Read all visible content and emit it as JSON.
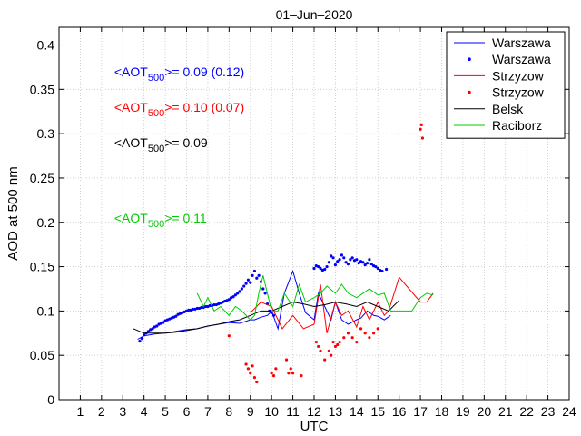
{
  "chart_data": {
    "type": "line",
    "title": "01–Jun–2020",
    "xlabel": "UTC",
    "ylabel": "AOD at 500 nm",
    "xlim": [
      0,
      24
    ],
    "ylim": [
      0,
      0.42
    ],
    "x_ticks": [
      1,
      2,
      3,
      4,
      5,
      6,
      7,
      8,
      9,
      10,
      11,
      12,
      13,
      14,
      15,
      16,
      17,
      18,
      19,
      20,
      21,
      22,
      23,
      24
    ],
    "y_ticks": [
      0,
      0.05,
      0.1,
      0.15,
      0.2,
      0.25,
      0.3,
      0.35,
      0.4
    ],
    "y_tick_labels": [
      "0",
      "0.05",
      "0.1",
      "0.15",
      "0.2",
      "0.25",
      "0.3",
      "0.35",
      "0.4"
    ],
    "grid": true,
    "legend_position": "top-right",
    "legend": [
      {
        "name": "Warszawa",
        "style": "line",
        "color": "#0000ff"
      },
      {
        "name": "Warszawa",
        "style": "dots",
        "color": "#0000ff"
      },
      {
        "name": "Strzyzow",
        "style": "line",
        "color": "#ff0000"
      },
      {
        "name": "Strzyzow",
        "style": "dots",
        "color": "#ff0000"
      },
      {
        "name": "Belsk",
        "style": "line",
        "color": "#000000"
      },
      {
        "name": "Raciborz",
        "style": "line",
        "color": "#00cc00"
      }
    ],
    "annotations": [
      {
        "prefix": "<AOT",
        "sub": "500",
        "suffix": ">= 0.09 (0.12)",
        "color": "#0000ff",
        "x": 2.6,
        "y": 0.37
      },
      {
        "prefix": "<AOT",
        "sub": "500",
        "suffix": ">= 0.10 (0.07)",
        "color": "#ff0000",
        "x": 2.6,
        "y": 0.33
      },
      {
        "prefix": "<AOT",
        "sub": "500",
        "suffix": ">= 0.09",
        "color": "#000000",
        "x": 2.6,
        "y": 0.29
      },
      {
        "prefix": "<AOT",
        "sub": "500",
        "suffix": ">= 0.11",
        "color": "#00cc00",
        "x": 2.6,
        "y": 0.205
      }
    ],
    "series": [
      {
        "name": "Warszawa",
        "style": "line",
        "color": "#0000ff",
        "x": [
          3.7,
          4.0,
          4.5,
          5.0,
          5.5,
          6.0,
          6.5,
          7.0,
          7.5,
          8.0,
          8.5,
          9.0,
          9.2,
          9.5,
          9.8,
          10.0,
          10.3,
          10.6,
          11.0,
          11.3,
          11.6,
          12.0,
          12.2,
          12.5,
          12.8,
          13.0,
          13.3,
          13.6,
          14.0,
          14.2,
          14.5,
          14.8,
          15.0,
          15.3,
          15.6
        ],
        "y": [
          0.068,
          0.072,
          0.074,
          0.075,
          0.077,
          0.079,
          0.08,
          0.083,
          0.085,
          0.087,
          0.086,
          0.09,
          0.09,
          0.093,
          0.095,
          0.1,
          0.08,
          0.12,
          0.145,
          0.12,
          0.098,
          0.09,
          0.12,
          0.105,
          0.09,
          0.11,
          0.09,
          0.085,
          0.09,
          0.092,
          0.1,
          0.095,
          0.094,
          0.09,
          0.095
        ]
      },
      {
        "name": "Warszawa",
        "style": "dots",
        "color": "#0000ff",
        "x": [
          3.8,
          3.9,
          4.0,
          4.1,
          4.2,
          4.3,
          4.4,
          4.5,
          4.6,
          4.7,
          4.8,
          4.9,
          5.0,
          5.1,
          5.2,
          5.3,
          5.4,
          5.5,
          5.6,
          5.7,
          5.8,
          5.9,
          6.0,
          6.1,
          6.2,
          6.3,
          6.4,
          6.5,
          6.6,
          6.7,
          6.8,
          6.9,
          7.0,
          7.1,
          7.2,
          7.3,
          7.4,
          7.5,
          7.6,
          7.7,
          7.8,
          7.9,
          8.0,
          8.1,
          8.2,
          8.3,
          8.4,
          8.5,
          8.6,
          8.7,
          8.8,
          8.9,
          9.0,
          9.1,
          9.2,
          9.3,
          9.4,
          9.5,
          9.6,
          9.7,
          9.8,
          9.9,
          10.0,
          10.1,
          12.0,
          12.1,
          12.2,
          12.3,
          12.4,
          12.5,
          12.6,
          12.7,
          12.8,
          12.9,
          13.0,
          13.1,
          13.2,
          13.3,
          13.4,
          13.5,
          13.6,
          13.7,
          13.8,
          13.9,
          14.0,
          14.1,
          14.2,
          14.3,
          14.4,
          14.5,
          14.6,
          14.7,
          14.8,
          14.9,
          15.0,
          15.1,
          15.2,
          15.4
        ],
        "y": [
          0.066,
          0.069,
          0.073,
          0.075,
          0.077,
          0.079,
          0.08,
          0.082,
          0.083,
          0.085,
          0.086,
          0.087,
          0.089,
          0.09,
          0.091,
          0.092,
          0.093,
          0.094,
          0.096,
          0.097,
          0.098,
          0.099,
          0.1,
          0.101,
          0.101,
          0.102,
          0.102,
          0.103,
          0.103,
          0.104,
          0.104,
          0.105,
          0.105,
          0.106,
          0.106,
          0.107,
          0.107,
          0.108,
          0.109,
          0.11,
          0.111,
          0.112,
          0.113,
          0.115,
          0.116,
          0.118,
          0.12,
          0.122,
          0.125,
          0.128,
          0.131,
          0.135,
          0.132,
          0.14,
          0.145,
          0.137,
          0.14,
          0.133,
          0.125,
          0.12,
          0.108,
          0.1,
          0.098,
          0.095,
          0.148,
          0.151,
          0.15,
          0.148,
          0.146,
          0.147,
          0.15,
          0.155,
          0.162,
          0.16,
          0.152,
          0.156,
          0.158,
          0.163,
          0.16,
          0.155,
          0.153,
          0.158,
          0.16,
          0.157,
          0.158,
          0.154,
          0.156,
          0.155,
          0.152,
          0.154,
          0.158,
          0.153,
          0.151,
          0.15,
          0.148,
          0.146,
          0.145,
          0.147
        ]
      },
      {
        "name": "Strzyzow",
        "style": "line",
        "color": "#ff0000",
        "x": [
          9.0,
          9.5,
          10.0,
          10.5,
          11.0,
          11.5,
          12.0,
          12.3,
          12.6,
          13.0,
          13.3,
          13.6,
          14.0,
          14.3,
          14.6,
          15.0,
          15.3,
          15.5,
          16.0,
          17.0,
          17.3,
          17.6
        ],
        "y": [
          0.098,
          0.11,
          0.105,
          0.08,
          0.095,
          0.08,
          0.085,
          0.13,
          0.075,
          0.11,
          0.095,
          0.1,
          0.082,
          0.105,
          0.09,
          0.11,
          0.095,
          0.1,
          0.138,
          0.11,
          0.11,
          0.12
        ]
      },
      {
        "name": "Strzyzow",
        "style": "dots",
        "color": "#ff0000",
        "x": [
          8.0,
          8.8,
          8.9,
          9.0,
          9.1,
          9.2,
          9.3,
          10.0,
          10.1,
          10.2,
          10.7,
          10.8,
          10.9,
          11.0,
          11.4,
          12.1,
          12.2,
          12.3,
          12.5,
          12.7,
          12.8,
          12.9,
          13.0,
          13.1,
          13.2,
          13.4,
          13.6,
          13.8,
          14.0,
          14.2,
          14.4,
          14.6,
          14.8,
          15.0,
          17.0,
          17.05,
          17.1
        ],
        "y": [
          0.072,
          0.04,
          0.035,
          0.03,
          0.038,
          0.025,
          0.02,
          0.03,
          0.027,
          0.035,
          0.045,
          0.03,
          0.035,
          0.03,
          0.027,
          0.065,
          0.06,
          0.055,
          0.045,
          0.055,
          0.05,
          0.065,
          0.06,
          0.062,
          0.065,
          0.07,
          0.075,
          0.07,
          0.065,
          0.08,
          0.075,
          0.07,
          0.075,
          0.08,
          0.305,
          0.31,
          0.295
        ]
      },
      {
        "name": "Belsk",
        "style": "line",
        "color": "#000000",
        "x": [
          3.5,
          4.0,
          4.5,
          5.0,
          5.5,
          6.0,
          6.5,
          7.0,
          7.5,
          8.0,
          8.5,
          9.0,
          9.5,
          10.0,
          10.5,
          11.0,
          11.5,
          12.0,
          12.5,
          13.0,
          13.5,
          14.0,
          14.5,
          15.0,
          15.5,
          16.0
        ],
        "y": [
          0.08,
          0.075,
          0.075,
          0.075,
          0.076,
          0.078,
          0.08,
          0.083,
          0.085,
          0.088,
          0.09,
          0.095,
          0.1,
          0.1,
          0.105,
          0.11,
          0.108,
          0.105,
          0.107,
          0.11,
          0.108,
          0.105,
          0.11,
          0.105,
          0.1,
          0.112
        ]
      },
      {
        "name": "Raciborz",
        "style": "line",
        "color": "#00cc00",
        "x": [
          6.5,
          6.8,
          7.0,
          7.3,
          7.6,
          8.0,
          8.3,
          8.6,
          9.0,
          9.2,
          9.4,
          9.6,
          9.8,
          10.0,
          10.3,
          10.6,
          11.0,
          11.3,
          11.6,
          12.0,
          12.3,
          12.6,
          13.0,
          13.3,
          13.6,
          14.0,
          14.3,
          14.6,
          15.0,
          15.3,
          15.6,
          16.0,
          16.3,
          16.6,
          17.0,
          17.3,
          17.6
        ],
        "y": [
          0.12,
          0.105,
          0.115,
          0.1,
          0.105,
          0.095,
          0.105,
          0.1,
          0.09,
          0.095,
          0.12,
          0.14,
          0.12,
          0.1,
          0.1,
          0.12,
          0.105,
          0.13,
          0.11,
          0.115,
          0.12,
          0.128,
          0.12,
          0.13,
          0.12,
          0.115,
          0.12,
          0.125,
          0.118,
          0.12,
          0.1,
          0.1,
          0.1,
          0.1,
          0.115,
          0.12,
          0.118
        ]
      }
    ]
  }
}
